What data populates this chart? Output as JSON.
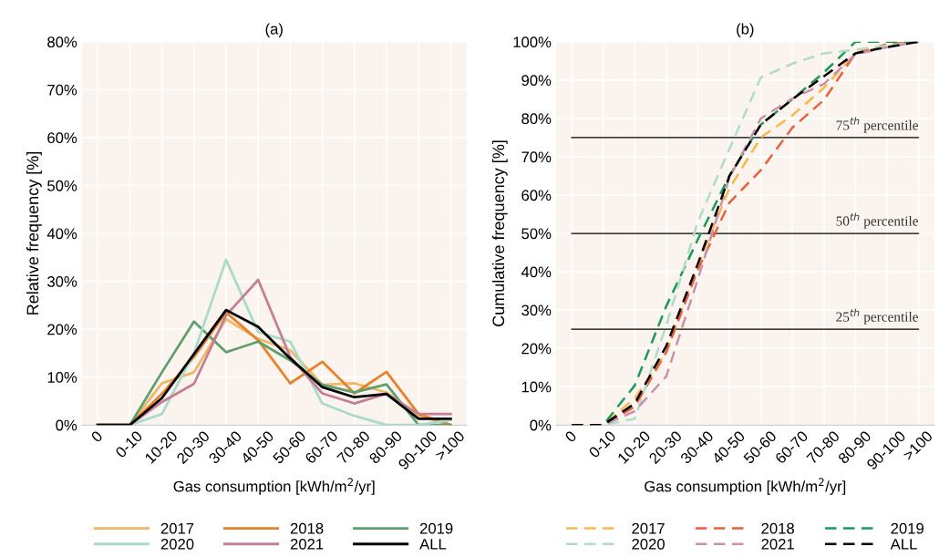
{
  "chart_data": [
    {
      "type": "line",
      "title": "(a)",
      "xlabel": "Gas consumption [kWh/m$^{2}$/yr]",
      "ylabel": "Relative frequency [%]",
      "categories": [
        "0",
        "0-10",
        "10-20",
        "20-30",
        "30-40",
        "40-50",
        "50-60",
        "60-70",
        "70-80",
        "80-90",
        "90-100",
        ">100"
      ],
      "series": [
        {
          "name": "2017",
          "color": "#f2b766",
          "values": [
            0,
            0,
            8.7,
            11,
            22.1,
            18,
            15.6,
            8.4,
            8.7,
            6.8,
            1.9,
            0
          ]
        },
        {
          "name": "2018",
          "color": "#e8822a",
          "values": [
            0,
            0,
            6.5,
            14.2,
            23.5,
            17.7,
            8.7,
            13.2,
            6.6,
            11.1,
            2.3,
            0
          ]
        },
        {
          "name": "2019",
          "color": "#5f9e6e",
          "values": [
            0,
            0,
            11,
            21.6,
            15.2,
            17.4,
            13.5,
            8.4,
            6.8,
            8.5,
            0,
            0
          ]
        },
        {
          "name": "2020",
          "color": "#a8dcc8",
          "values": [
            0,
            0,
            2.3,
            15,
            34.5,
            19.4,
            17.4,
            4.5,
            1.9,
            0,
            0,
            1
          ]
        },
        {
          "name": "2021",
          "color": "#c47f92",
          "values": [
            0,
            0,
            4.8,
            8.6,
            22.9,
            30.3,
            14.2,
            6.6,
            4.5,
            6.5,
            2.3,
            2.3
          ]
        },
        {
          "name": "ALL",
          "color": "#000000",
          "values": [
            0,
            0,
            5.6,
            14.8,
            24,
            20.5,
            13.9,
            7.9,
            5.8,
            6.5,
            1.3,
            1.3
          ]
        }
      ],
      "ylim": [
        0,
        80
      ],
      "yticks": [
        {
          "value": 0,
          "label": "0%"
        },
        {
          "value": 10,
          "label": "10%"
        },
        {
          "value": 20,
          "label": "20%"
        },
        {
          "value": 30,
          "label": "30%"
        },
        {
          "value": 40,
          "label": "40%"
        },
        {
          "value": 50,
          "label": "50%"
        },
        {
          "value": 60,
          "label": "60%"
        },
        {
          "value": 70,
          "label": "70%"
        },
        {
          "value": 80,
          "label": "80%"
        }
      ],
      "grid": true,
      "legend": "bottom",
      "line_style": "solid"
    },
    {
      "type": "line",
      "title": "(b)",
      "xlabel": "Gas consumption [kWh/m$^{2}$/yr]",
      "ylabel": "Cumulative frequency [%]",
      "categories": [
        "0",
        "0-10",
        "10-20",
        "20-30",
        "30-40",
        "40-50",
        "50-60",
        "60-70",
        "70-80",
        "80-90",
        "90-100",
        ">100"
      ],
      "series": [
        {
          "name": "2017",
          "color": "#f7b94a",
          "values": [
            0,
            0,
            7,
            19,
            41.7,
            61.7,
            75,
            80.8,
            88,
            97,
            99,
            100
          ]
        },
        {
          "name": "2018",
          "color": "#e8603c",
          "values": [
            0,
            0,
            4.8,
            19,
            40.5,
            58,
            66.5,
            77.6,
            84.8,
            97,
            99.4,
            100
          ]
        },
        {
          "name": "2019",
          "color": "#1a9a5a",
          "values": [
            0,
            0,
            10.3,
            31,
            48.4,
            65,
            78.4,
            85,
            92,
            100,
            100,
            100
          ]
        },
        {
          "name": "2020",
          "color": "#b0dcc8",
          "values": [
            0,
            0,
            1.6,
            26,
            53,
            72,
            90.7,
            94.3,
            97,
            97.9,
            99,
            100
          ]
        },
        {
          "name": "2021",
          "color": "#c891a8",
          "values": [
            0,
            0,
            3.6,
            12.7,
            38,
            64.5,
            80,
            85.2,
            89,
            96.7,
            98.6,
            100
          ]
        },
        {
          "name": "ALL",
          "color": "#000000",
          "values": [
            0,
            0,
            5.6,
            20.6,
            42,
            64.9,
            78.4,
            85,
            91,
            97,
            98.6,
            100
          ]
        }
      ],
      "ylim": [
        0,
        100
      ],
      "yticks": [
        {
          "value": 0,
          "label": "0%"
        },
        {
          "value": 10,
          "label": "10%"
        },
        {
          "value": 20,
          "label": "20%"
        },
        {
          "value": 30,
          "label": "30%"
        },
        {
          "value": 40,
          "label": "40%"
        },
        {
          "value": 50,
          "label": "50%"
        },
        {
          "value": 60,
          "label": "60%"
        },
        {
          "value": 70,
          "label": "70%"
        },
        {
          "value": 80,
          "label": "80%"
        },
        {
          "value": 90,
          "label": "90%"
        },
        {
          "value": 100,
          "label": "100%"
        }
      ],
      "ref_lines": [
        {
          "axis": "y",
          "value": 75,
          "label": "75$^{th}$ percentile",
          "color": "#000000"
        },
        {
          "axis": "y",
          "value": 50,
          "label": "50$^{th}$ percentile",
          "color": "#000000"
        },
        {
          "axis": "y",
          "value": 25,
          "label": "25$^{th}$ percentile",
          "color": "#000000"
        }
      ],
      "grid": true,
      "legend": "bottom",
      "line_style": "dashed"
    }
  ]
}
